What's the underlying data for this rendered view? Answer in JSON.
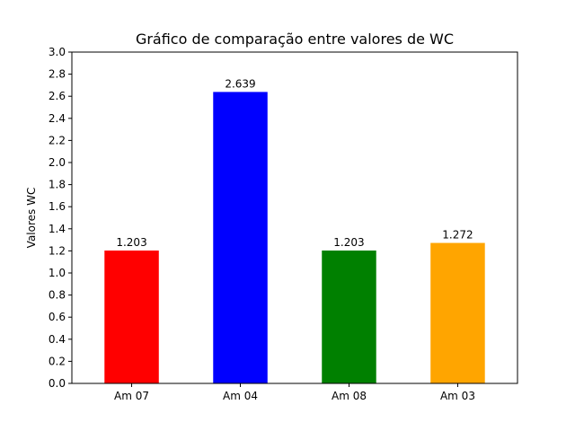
{
  "chart_data": {
    "type": "bar",
    "title": "Gráfico de comparação entre valores de WC",
    "xlabel": "",
    "ylabel": "Valores WC",
    "categories": [
      "Am 07",
      "Am 04",
      "Am 08",
      "Am 03"
    ],
    "values": [
      1.203,
      2.639,
      1.203,
      1.272
    ],
    "value_labels": [
      "1.203",
      "2.639",
      "1.203",
      "1.272"
    ],
    "colors": [
      "#ff0000",
      "#0000ff",
      "#008000",
      "#ffa500"
    ],
    "ylim": [
      0,
      3.0
    ],
    "yticks": [
      "0.0",
      "0.2",
      "0.4",
      "0.6",
      "0.8",
      "1.0",
      "1.2",
      "1.4",
      "1.6",
      "1.8",
      "2.0",
      "2.2",
      "2.4",
      "2.6",
      "2.8",
      "3.0"
    ],
    "grid": false,
    "legend": "none"
  }
}
